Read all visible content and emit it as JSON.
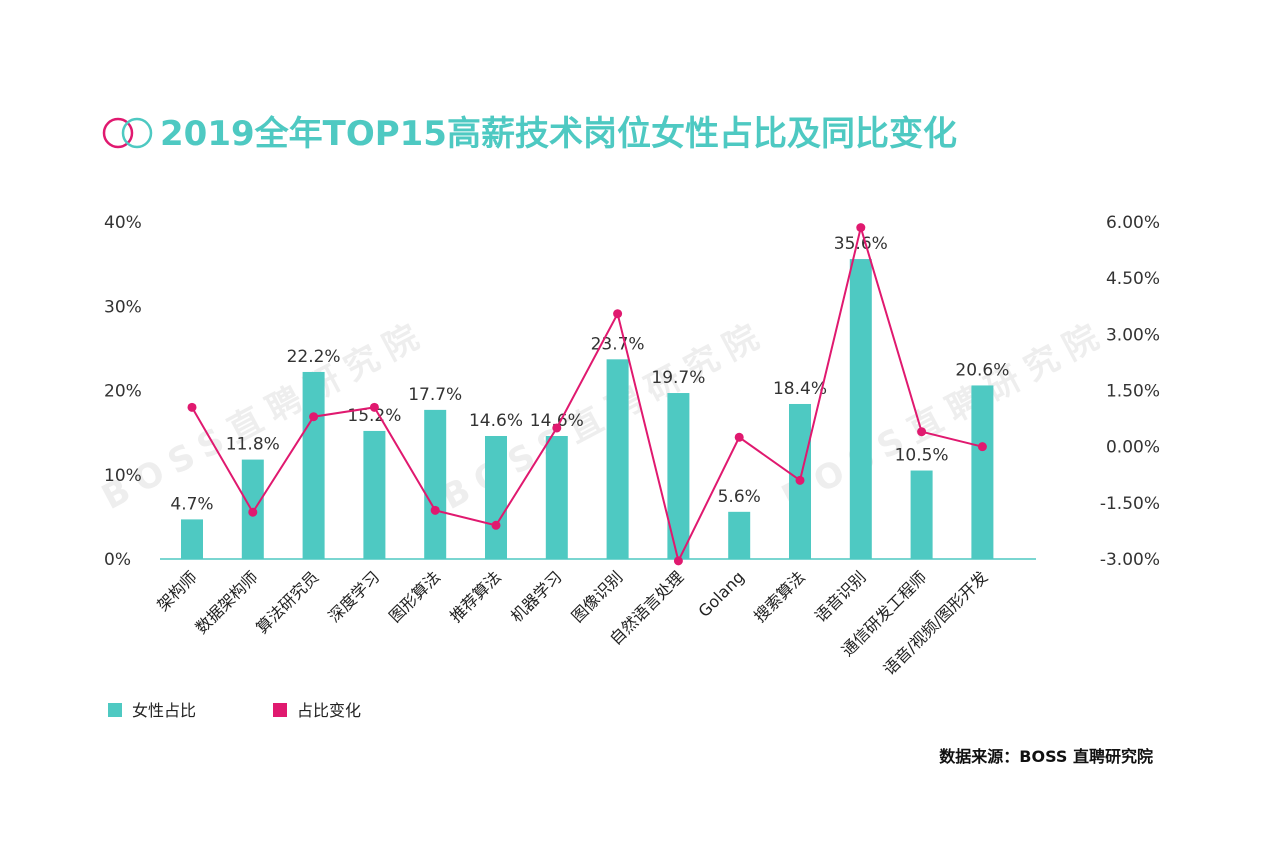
{
  "title": "2019全年TOP15高薪技术岗位女性占比及同比变化",
  "watermark": "BOSS直聘研究院",
  "source": "数据来源：BOSS 直聘研究院",
  "colors": {
    "bar": "#4ec9c2",
    "line": "#e0196f",
    "title": "#4ec9c2",
    "axis": "#4ec9c2"
  },
  "chart_data": {
    "type": "bar",
    "categories": [
      "架构师",
      "数据架构师",
      "算法研究员",
      "深度学习",
      "图形算法",
      "推荐算法",
      "机器学习",
      "图像识别",
      "自然语言处理",
      "Golang",
      "搜索算法",
      "语音识别",
      "通信研发工程师",
      "语音/视频/图形开发"
    ],
    "series": [
      {
        "name": "女性占比",
        "type": "bar",
        "axis": "left",
        "values": [
          4.7,
          11.8,
          22.2,
          15.2,
          17.7,
          14.6,
          14.6,
          23.7,
          19.7,
          5.6,
          18.4,
          35.6,
          10.5,
          20.6
        ],
        "labels": [
          "4.7%",
          "11.8%",
          "22.2%",
          "15.2%",
          "17.7%",
          "14.6%",
          "14.6%",
          "23.7%",
          "19.7%",
          "5.6%",
          "18.4%",
          "35.6%",
          "10.5%",
          "20.6%"
        ]
      },
      {
        "name": "占比变化",
        "type": "line",
        "axis": "right",
        "values": [
          1.05,
          -1.75,
          0.8,
          1.05,
          -1.7,
          -2.1,
          0.5,
          3.55,
          -3.05,
          0.25,
          -0.9,
          5.85,
          0.4,
          0.0
        ]
      }
    ],
    "y_left": {
      "ylim": [
        0,
        40
      ],
      "ticks": [
        "0%",
        "10%",
        "20%",
        "30%",
        "40%"
      ]
    },
    "y_right": {
      "ylim": [
        -3,
        6
      ],
      "ticks": [
        "-3.00%",
        "-1.50%",
        "0.00%",
        "1.50%",
        "3.00%",
        "4.50%",
        "6.00%"
      ]
    },
    "legend": {
      "placement": "bottom-left",
      "items": [
        "女性占比",
        "占比变化"
      ]
    },
    "grid": false
  }
}
